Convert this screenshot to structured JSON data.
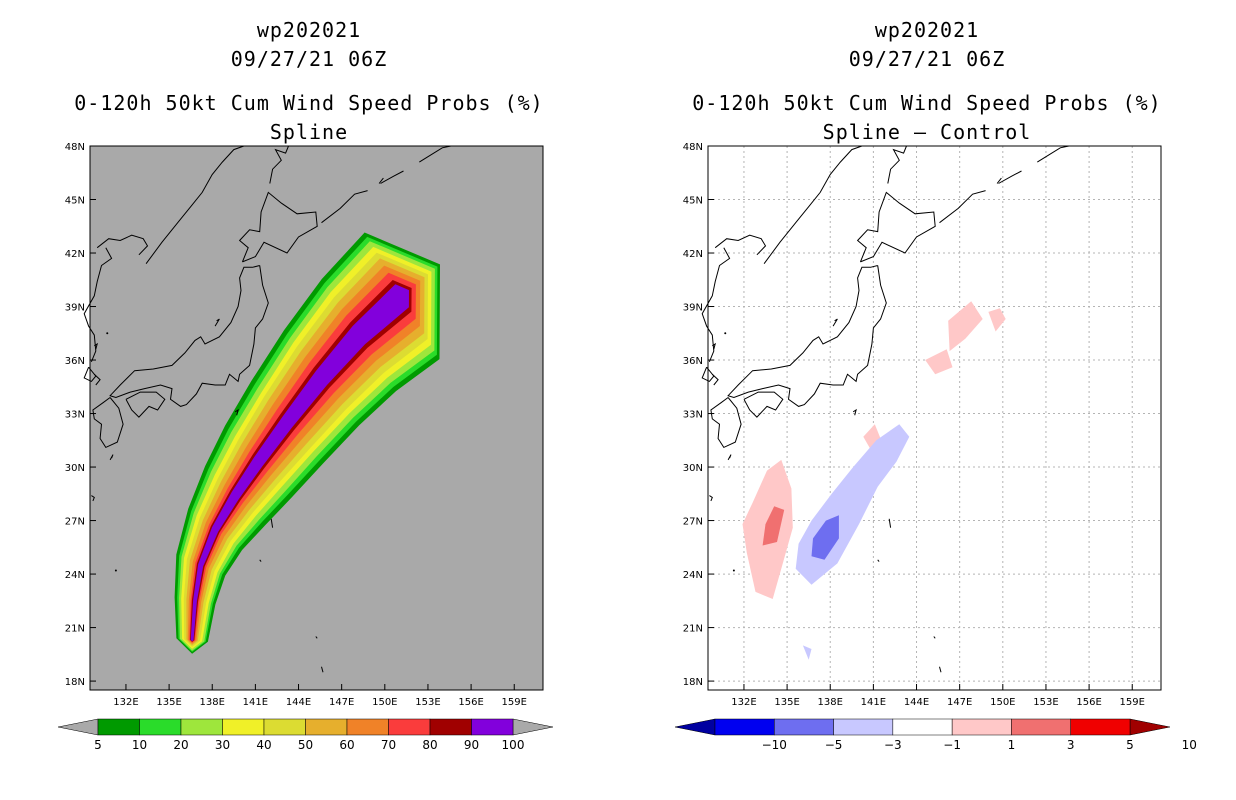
{
  "chart_data": [
    {
      "type": "heatmap",
      "storm_id": "wp202021",
      "datetime": "09/27/21 06Z",
      "title": "0-120h 50kt Cum Wind Speed Probs (%)",
      "subtitle": "Spline",
      "xlabel": "",
      "ylabel": "",
      "xlim": [
        129.5,
        161
      ],
      "ylim": [
        17.5,
        48
      ],
      "grid": false,
      "x_ticks": [
        "132E",
        "135E",
        "138E",
        "141E",
        "144E",
        "147E",
        "150E",
        "153E",
        "156E",
        "159E"
      ],
      "y_ticks": [
        "18N",
        "21N",
        "24N",
        "27N",
        "30N",
        "33N",
        "36N",
        "39N",
        "42N",
        "45N",
        "48N"
      ],
      "colorbar": {
        "labels": [
          "5",
          "10",
          "20",
          "30",
          "40",
          "50",
          "60",
          "70",
          "80",
          "90",
          "100"
        ],
        "colors": [
          "#009a00",
          "#2adc2a",
          "#9ee63c",
          "#f0f028",
          "#dcdc32",
          "#e6af2d",
          "#f08228",
          "#fa3c3c",
          "#a00000",
          "#8200dc"
        ]
      },
      "swath": {
        "colors": [
          "#009a00",
          "#2adc2a",
          "#9ee63c",
          "#f0f028",
          "#dcdc32",
          "#e6af2d",
          "#f08228",
          "#fa3c3c",
          "#a00000",
          "#8200dc"
        ],
        "path": [
          [
            136.6,
            20.3
          ],
          [
            136.8,
            22.5
          ],
          [
            137.2,
            24.5
          ],
          [
            138.2,
            26.5
          ],
          [
            139.6,
            28.4
          ],
          [
            141.2,
            30.3
          ],
          [
            143.2,
            32.5
          ],
          [
            145.6,
            35.0
          ],
          [
            148.2,
            37.4
          ],
          [
            151.2,
            39.6
          ]
        ],
        "half_widths": [
          [
            1.1,
            1.6,
            2.2,
            2.9,
            3.4,
            3.9,
            4.4
          ],
          [
            0.95,
            1.4,
            1.95,
            2.6,
            3.1,
            3.6,
            4.1
          ],
          [
            0.85,
            1.25,
            1.75,
            2.35,
            2.8,
            3.3,
            3.8
          ],
          [
            0.7,
            1.1,
            1.5,
            2.0,
            2.45,
            2.95,
            3.4
          ],
          [
            0.55,
            0.9,
            1.25,
            1.7,
            2.15,
            2.6,
            3.0
          ],
          [
            0.4,
            0.7,
            1.0,
            1.4,
            1.8,
            2.2,
            2.6
          ],
          [
            0.3,
            0.5,
            0.75,
            1.05,
            1.4,
            1.75,
            2.1
          ],
          [
            0.2,
            0.35,
            0.5,
            0.75,
            1.0,
            1.3,
            1.6
          ],
          [
            0.15,
            0.25,
            0.35,
            0.5,
            0.65,
            0.85,
            1.1
          ],
          [
            0.1,
            0.15,
            0.25,
            0.35,
            0.45,
            0.6,
            0.8
          ]
        ]
      }
    },
    {
      "type": "heatmap",
      "storm_id": "wp202021",
      "datetime": "09/27/21 06Z",
      "title": "0-120h 50kt Cum Wind Speed Probs (%)",
      "subtitle": "Spline – Control",
      "xlabel": "",
      "ylabel": "",
      "xlim": [
        129.5,
        161
      ],
      "ylim": [
        17.5,
        48
      ],
      "grid": true,
      "x_ticks": [
        "132E",
        "135E",
        "138E",
        "141E",
        "144E",
        "147E",
        "150E",
        "153E",
        "156E",
        "159E"
      ],
      "y_ticks": [
        "18N",
        "21N",
        "24N",
        "27N",
        "30N",
        "33N",
        "36N",
        "39N",
        "42N",
        "45N",
        "48N"
      ],
      "colorbar": {
        "labels": [
          "−10",
          "−5",
          "−3",
          "−1",
          "1",
          "3",
          "5",
          "10"
        ],
        "colors": [
          "#0000a0",
          "#0000f0",
          "#6e6ef0",
          "#c8c8ff",
          "#ffffff",
          "#ffc8c8",
          "#f07070",
          "#f00000",
          "#a00000"
        ]
      },
      "anomalies": [
        {
          "name": "pos-3",
          "color": "#ffc8c8",
          "points": [
            [
              132.2,
              25.2
            ],
            [
              132.8,
              23.0
            ],
            [
              134.0,
              22.6
            ],
            [
              134.7,
              24.6
            ],
            [
              135.4,
              26.6
            ],
            [
              135.3,
              28.8
            ],
            [
              134.6,
              30.4
            ],
            [
              133.6,
              29.8
            ],
            [
              132.6,
              28.0
            ],
            [
              131.9,
              26.8
            ]
          ]
        },
        {
          "name": "pos-5",
          "color": "#f07070",
          "points": [
            [
              133.3,
              25.6
            ],
            [
              134.3,
              25.8
            ],
            [
              134.8,
              27.6
            ],
            [
              134.1,
              27.8
            ],
            [
              133.5,
              26.8
            ]
          ]
        },
        {
          "name": "pos-3-north",
          "color": "#ffc8c8",
          "points": [
            [
              146.2,
              38.2
            ],
            [
              147.8,
              39.3
            ],
            [
              148.6,
              38.3
            ],
            [
              147.4,
              37.2
            ],
            [
              146.3,
              36.5
            ]
          ]
        },
        {
          "name": "pos-3-east",
          "color": "#ffc8c8",
          "points": [
            [
              149.0,
              38.7
            ],
            [
              149.8,
              38.9
            ],
            [
              150.2,
              38.3
            ],
            [
              149.5,
              37.6
            ]
          ]
        },
        {
          "name": "pos-3-mid",
          "color": "#ffc8c8",
          "points": [
            [
              144.6,
              36.0
            ],
            [
              146.1,
              36.6
            ],
            [
              146.5,
              35.6
            ],
            [
              145.3,
              35.2
            ]
          ]
        },
        {
          "name": "pos-3-small",
          "color": "#ffc8c8",
          "points": [
            [
              140.3,
              31.7
            ],
            [
              141.1,
              32.4
            ],
            [
              141.6,
              31.4
            ],
            [
              140.8,
              31.0
            ]
          ]
        },
        {
          "name": "neg-3",
          "color": "#c8c8ff",
          "points": [
            [
              135.6,
              24.3
            ],
            [
              136.7,
              23.4
            ],
            [
              138.5,
              24.6
            ],
            [
              140.0,
              26.8
            ],
            [
              141.3,
              28.9
            ],
            [
              142.6,
              30.3
            ],
            [
              143.5,
              31.7
            ],
            [
              142.8,
              32.4
            ],
            [
              141.2,
              31.5
            ],
            [
              139.6,
              30.0
            ],
            [
              138.1,
              28.5
            ],
            [
              136.7,
              27.0
            ],
            [
              135.8,
              25.7
            ]
          ]
        },
        {
          "name": "neg-5",
          "color": "#6e6ef0",
          "points": [
            [
              136.7,
              25.0
            ],
            [
              137.6,
              24.8
            ],
            [
              138.6,
              26.0
            ],
            [
              138.6,
              27.3
            ],
            [
              137.7,
              27.0
            ],
            [
              136.8,
              26.0
            ]
          ]
        },
        {
          "name": "neg-3-small",
          "color": "#c8c8ff",
          "points": [
            [
              136.1,
              20.0
            ],
            [
              136.7,
              19.8
            ],
            [
              136.5,
              19.2
            ]
          ]
        }
      ]
    }
  ]
}
